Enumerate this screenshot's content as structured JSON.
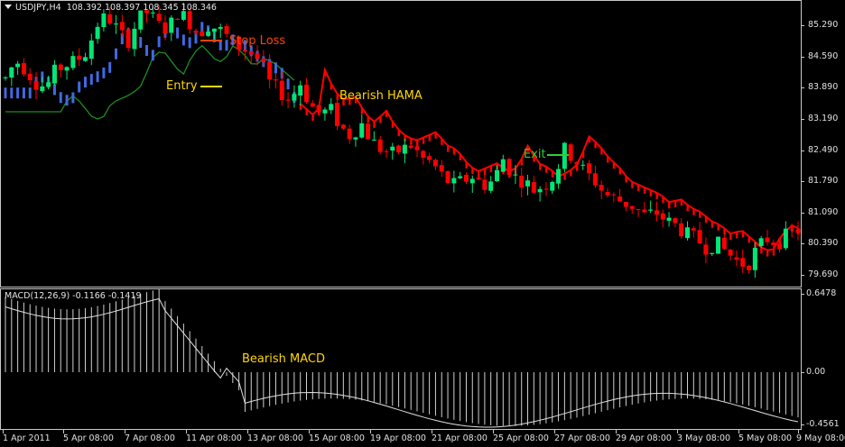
{
  "chart": {
    "symbol": "USDJPY,H4",
    "ohlc": [
      "108.392",
      "108.397",
      "108.345",
      "108.346"
    ],
    "price_axis": [
      "85.290",
      "84.590",
      "83.890",
      "83.190",
      "82.490",
      "81.790",
      "81.090",
      "80.390",
      "79.690"
    ],
    "colors": {
      "background": "#000000",
      "bull": "#00e676",
      "bear": "#ff0000",
      "hama_bull": "#4169e1",
      "hama_bear": "#ff0000",
      "ma": "#1e8c1e",
      "annotation_yellow": "#ffd700",
      "stop_loss": "#ff4500",
      "exit": "#32cd32",
      "grid": "#c8c8c8"
    }
  },
  "annotations": {
    "stop_loss": "Stop Loss",
    "entry": "Entry",
    "bearish_hama": "Bearish HAMA",
    "exit": "Exit",
    "bearish_macd": "Bearish MACD"
  },
  "macd": {
    "label": "MACD(12,26,9) -0.1166 -0.1419",
    "axis": [
      "0.6478",
      "0.00",
      "-0.4561"
    ]
  },
  "time_axis": [
    "1 Apr 2011",
    "5 Apr 08:00",
    "7 Apr 08:00",
    "11 Apr 08:00",
    "13 Apr 08:00",
    "15 Apr 08:00",
    "19 Apr 08:00",
    "21 Apr 08:00",
    "25 Apr 08:00",
    "27 Apr 08:00",
    "29 Apr 08:00",
    "3 May 08:00",
    "5 May 08:00",
    "9 May 08:00"
  ],
  "chart_data": {
    "type": "candlestick",
    "title": "USDJPY,H4",
    "ylim": [
      79.5,
      85.8
    ],
    "candles_close_approx": [
      84.1,
      84.5,
      84.3,
      84.0,
      83.9,
      84.3,
      84.4,
      84.5,
      84.7,
      85.3,
      85.5,
      85.2,
      84.9,
      85.4,
      85.6,
      85.3,
      85.2,
      85.6,
      85.4,
      85.1,
      85.3,
      85.2,
      85.0,
      84.8,
      84.7,
      84.5,
      84.0,
      83.8,
      83.6,
      84.0,
      83.5,
      83.3,
      83.4,
      83.0,
      82.8,
      83.1,
      82.7,
      82.5,
      82.4,
      82.5,
      82.6,
      82.3,
      82.2,
      81.9,
      81.7,
      81.8,
      81.9,
      81.7,
      81.8,
      82.3,
      81.9,
      81.8,
      81.6,
      81.7,
      81.9,
      82.5,
      82.3,
      82.0,
      81.8,
      81.5,
      81.4,
      81.3,
      81.2,
      81.0,
      81.1,
      80.9,
      80.8,
      80.6,
      80.5,
      80.3,
      80.4,
      80.2,
      80.0,
      79.9,
      80.3,
      80.5,
      80.4,
      80.6,
      80.7
    ],
    "hama_state": "bearish after 11 Apr",
    "macd_range": [
      -0.4561,
      0.6478
    ]
  }
}
